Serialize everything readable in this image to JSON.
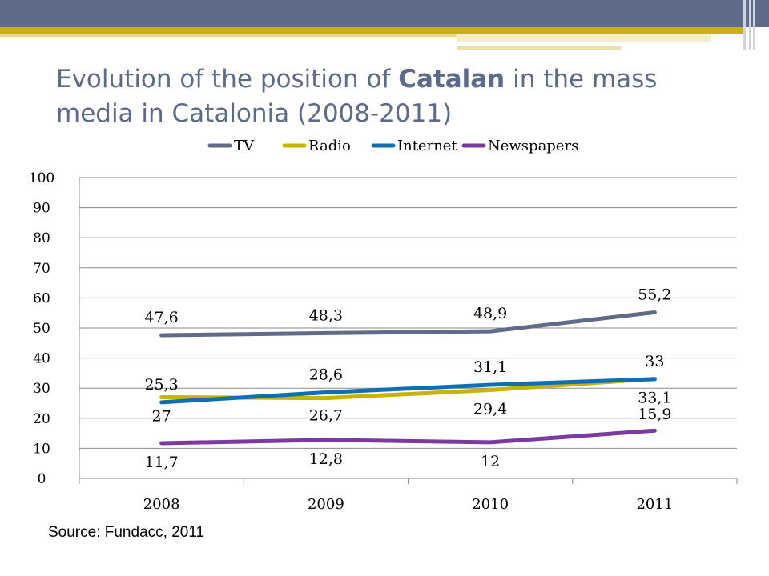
{
  "slide": {
    "title_before": "Evolution of the position of ",
    "title_bold": "Catalan",
    "title_after": " in the mass media in Catalonia (2008-2011)",
    "source": "Source: Fundacc, 2011"
  },
  "theme": {
    "header_slate": "#5f6b89",
    "header_gold": "#c8b400",
    "title_color": "#5c6b8a"
  },
  "chart_data": {
    "type": "line",
    "title": "",
    "xlabel": "",
    "ylabel": "",
    "categories": [
      "2008",
      "2009",
      "2010",
      "2011"
    ],
    "ylim": [
      0,
      100
    ],
    "yticks": [
      0,
      10,
      20,
      30,
      40,
      50,
      60,
      70,
      80,
      90,
      100
    ],
    "grid": true,
    "legend_position": "top",
    "series": [
      {
        "name": "TV",
        "color": "#5f6b89",
        "values": [
          47.6,
          48.3,
          48.9,
          55.2
        ],
        "labels": [
          "47,6",
          "48,3",
          "48,9",
          "55,2"
        ]
      },
      {
        "name": "Radio",
        "color": "#c8b400",
        "values": [
          27,
          26.7,
          29.4,
          33.1
        ],
        "labels": [
          "27",
          "26,7",
          "29,4",
          "33,1"
        ]
      },
      {
        "name": "Internet",
        "color": "#0e6fb5",
        "values": [
          25.3,
          28.6,
          31.1,
          33
        ],
        "labels": [
          "25,3",
          "28,6",
          "31,1",
          "33"
        ]
      },
      {
        "name": "Newspapers",
        "color": "#7b3aa0",
        "values": [
          11.7,
          12.8,
          12,
          15.9
        ],
        "labels": [
          "11,7",
          "12,8",
          "12",
          "15,9"
        ]
      }
    ]
  }
}
